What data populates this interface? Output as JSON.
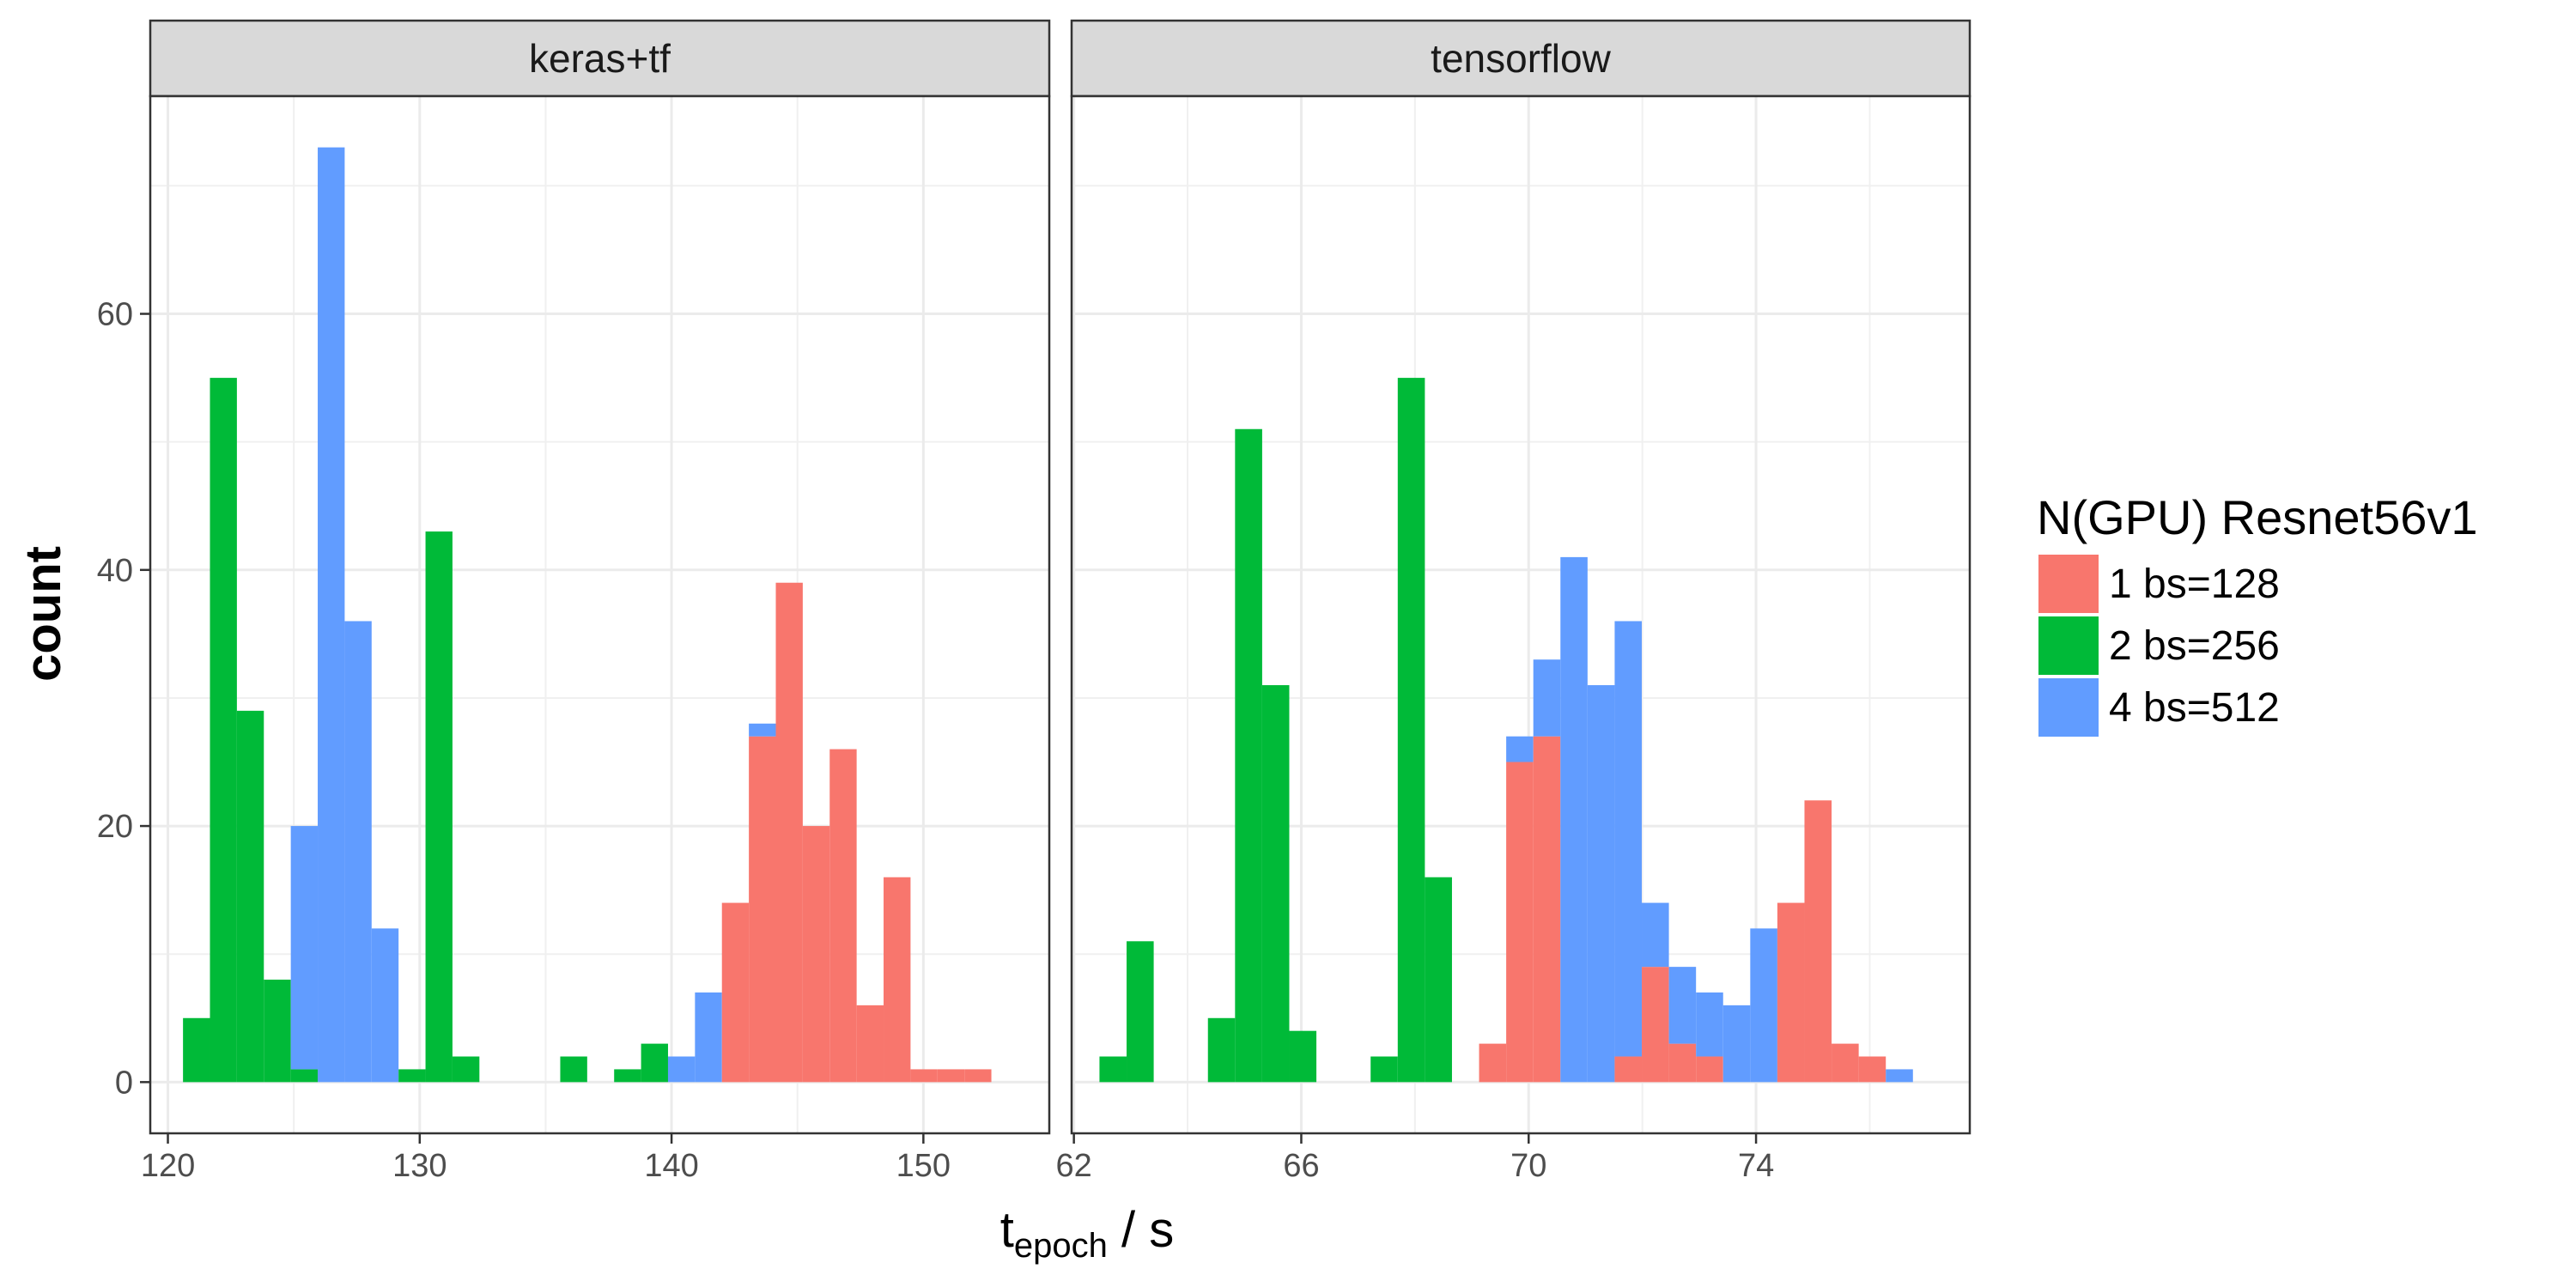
{
  "chart_data": {
    "type": "histogram-faceted",
    "y_axis_title": "count",
    "x_axis_title": {
      "main": "t",
      "subscript": "epoch",
      "suffix": " / s"
    },
    "ylim": [
      -4,
      77
    ],
    "y_ticks": [
      0,
      20,
      40,
      60
    ],
    "grid": true,
    "legend": {
      "title": "N(GPU) Resnet56v1",
      "placement": "right",
      "entries": [
        {
          "label": "1 bs=128",
          "color": "#F8766D"
        },
        {
          "label": "2 bs=256",
          "color": "#00BA38"
        },
        {
          "label": "4 bs=512",
          "color": "#619CFF"
        }
      ]
    },
    "series_order": [
      "1 bs=128",
      "2 bs=256",
      "4 bs=512"
    ],
    "panels": [
      {
        "strip": "keras+tf",
        "xlim": [
          119.3,
          155.0
        ],
        "x_ticks": [
          120,
          130,
          140,
          150
        ],
        "binwidth": 1.07,
        "bins": [
          {
            "x0": 120.6,
            "counts": [
              0,
              5,
              0
            ]
          },
          {
            "x0": 121.67,
            "counts": [
              0,
              55,
              0
            ]
          },
          {
            "x0": 122.74,
            "counts": [
              0,
              29,
              0
            ]
          },
          {
            "x0": 123.81,
            "counts": [
              0,
              8,
              0
            ]
          },
          {
            "x0": 124.88,
            "counts": [
              0,
              1,
              19
            ]
          },
          {
            "x0": 125.95,
            "counts": [
              0,
              0,
              73
            ]
          },
          {
            "x0": 127.02,
            "counts": [
              0,
              0,
              36
            ]
          },
          {
            "x0": 128.09,
            "counts": [
              0,
              0,
              12
            ]
          },
          {
            "x0": 129.16,
            "counts": [
              0,
              1,
              0
            ]
          },
          {
            "x0": 130.23,
            "counts": [
              0,
              43,
              0
            ]
          },
          {
            "x0": 131.3,
            "counts": [
              0,
              2,
              0
            ]
          },
          {
            "x0": 135.58,
            "counts": [
              0,
              2,
              0
            ]
          },
          {
            "x0": 137.72,
            "counts": [
              0,
              1,
              0
            ]
          },
          {
            "x0": 138.79,
            "counts": [
              0,
              3,
              0
            ]
          },
          {
            "x0": 139.86,
            "counts": [
              0,
              0,
              2
            ]
          },
          {
            "x0": 140.93,
            "counts": [
              0,
              0,
              7
            ]
          },
          {
            "x0": 142.0,
            "counts": [
              14,
              0,
              0
            ]
          },
          {
            "x0": 143.07,
            "counts": [
              27,
              0,
              1
            ]
          },
          {
            "x0": 144.14,
            "counts": [
              39,
              0,
              0
            ]
          },
          {
            "x0": 145.21,
            "counts": [
              20,
              0,
              0
            ]
          },
          {
            "x0": 146.28,
            "counts": [
              26,
              0,
              0
            ]
          },
          {
            "x0": 147.35,
            "counts": [
              6,
              0,
              0
            ]
          },
          {
            "x0": 148.42,
            "counts": [
              16,
              0,
              0
            ]
          },
          {
            "x0": 149.49,
            "counts": [
              1,
              0,
              0
            ]
          },
          {
            "x0": 150.56,
            "counts": [
              1,
              0,
              0
            ]
          },
          {
            "x0": 151.63,
            "counts": [
              1,
              0,
              0
            ]
          }
        ]
      },
      {
        "strip": "tensorflow",
        "xlim": [
          61.96,
          77.76
        ],
        "x_ticks": [
          62,
          66,
          70,
          74
        ],
        "x_tick_labels": [
          "62",
          "66",
          "70",
          "74"
        ],
        "binwidth": 0.477,
        "bins": [
          {
            "x0": 62.45,
            "counts": [
              0,
              2,
              0
            ]
          },
          {
            "x0": 62.927,
            "counts": [
              0,
              11,
              0
            ]
          },
          {
            "x0": 64.358,
            "counts": [
              0,
              5,
              0
            ]
          },
          {
            "x0": 64.835,
            "counts": [
              0,
              51,
              0
            ]
          },
          {
            "x0": 65.312,
            "counts": [
              0,
              31,
              0
            ]
          },
          {
            "x0": 65.789,
            "counts": [
              0,
              4,
              0
            ]
          },
          {
            "x0": 67.22,
            "counts": [
              0,
              2,
              0
            ]
          },
          {
            "x0": 67.697,
            "counts": [
              0,
              55,
              0
            ]
          },
          {
            "x0": 68.174,
            "counts": [
              0,
              16,
              0
            ]
          },
          {
            "x0": 69.128,
            "counts": [
              3,
              0,
              0
            ]
          },
          {
            "x0": 69.605,
            "counts": [
              25,
              0,
              2
            ]
          },
          {
            "x0": 70.082,
            "counts": [
              27,
              0,
              6
            ]
          },
          {
            "x0": 70.559,
            "counts": [
              0,
              0,
              41
            ]
          },
          {
            "x0": 71.036,
            "counts": [
              0,
              0,
              31
            ]
          },
          {
            "x0": 71.513,
            "counts": [
              2,
              0,
              34
            ]
          },
          {
            "x0": 71.99,
            "counts": [
              9,
              0,
              5
            ]
          },
          {
            "x0": 72.467,
            "counts": [
              3,
              0,
              6
            ]
          },
          {
            "x0": 72.944,
            "counts": [
              2,
              0,
              5
            ]
          },
          {
            "x0": 73.421,
            "counts": [
              0,
              0,
              6
            ]
          },
          {
            "x0": 73.898,
            "counts": [
              0,
              0,
              12
            ]
          },
          {
            "x0": 74.375,
            "counts": [
              14,
              0,
              0
            ]
          },
          {
            "x0": 74.852,
            "counts": [
              22,
              0,
              0
            ]
          },
          {
            "x0": 75.329,
            "counts": [
              3,
              0,
              0
            ]
          },
          {
            "x0": 75.806,
            "counts": [
              2,
              0,
              0
            ]
          },
          {
            "x0": 76.283,
            "counts": [
              0,
              0,
              1
            ]
          }
        ]
      }
    ]
  }
}
